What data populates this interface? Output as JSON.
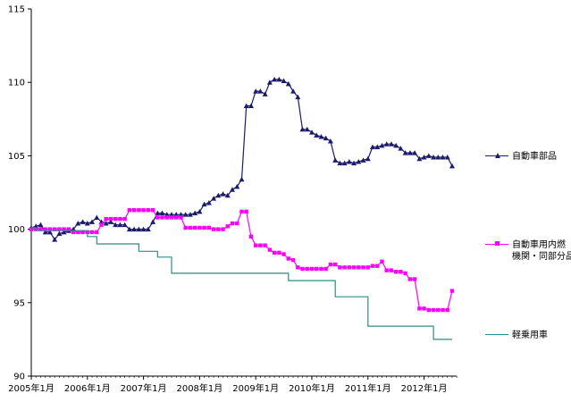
{
  "chart_data": {
    "type": "line",
    "title": "",
    "xlabel": "",
    "ylabel": "",
    "ylim": [
      90,
      115
    ],
    "yticks": [
      "90",
      "95",
      "100",
      "105",
      "110",
      "115"
    ],
    "xlim": [
      2005.0,
      2012.58
    ],
    "xticks": [
      {
        "label": "2005年1月",
        "value": 2005.0
      },
      {
        "label": "2006年1月",
        "value": 2006.0
      },
      {
        "label": "2007年1月",
        "value": 2007.0
      },
      {
        "label": "2008年1月",
        "value": 2008.0
      },
      {
        "label": "2009年1月",
        "value": 2009.0
      },
      {
        "label": "2010年1月",
        "value": 2010.0
      },
      {
        "label": "2011年1月",
        "value": 2011.0
      },
      {
        "label": "2012年1月",
        "value": 2012.0
      }
    ],
    "grid": false,
    "legend_position": "right",
    "series": [
      {
        "name": "自動車部品",
        "color": "#1a1a6e",
        "marker": "triangle",
        "x": [
          2005.0,
          2005.083,
          2005.167,
          2005.25,
          2005.333,
          2005.417,
          2005.5,
          2005.583,
          2005.667,
          2005.75,
          2005.833,
          2005.917,
          2006.0,
          2006.083,
          2006.167,
          2006.25,
          2006.333,
          2006.417,
          2006.5,
          2006.583,
          2006.667,
          2006.75,
          2006.833,
          2006.917,
          2007.0,
          2007.083,
          2007.167,
          2007.25,
          2007.333,
          2007.417,
          2007.5,
          2007.583,
          2007.667,
          2007.75,
          2007.833,
          2007.917,
          2008.0,
          2008.083,
          2008.167,
          2008.25,
          2008.333,
          2008.417,
          2008.5,
          2008.583,
          2008.667,
          2008.75,
          2008.833,
          2008.917,
          2009.0,
          2009.083,
          2009.167,
          2009.25,
          2009.333,
          2009.417,
          2009.5,
          2009.583,
          2009.667,
          2009.75,
          2009.833,
          2009.917,
          2010.0,
          2010.083,
          2010.167,
          2010.25,
          2010.333,
          2010.417,
          2010.5,
          2010.583,
          2010.667,
          2010.75,
          2010.833,
          2010.917,
          2011.0,
          2011.083,
          2011.167,
          2011.25,
          2011.333,
          2011.417,
          2011.5,
          2011.583,
          2011.667,
          2011.75,
          2011.833,
          2011.917,
          2012.0,
          2012.083,
          2012.167,
          2012.25,
          2012.333,
          2012.417,
          2012.5
        ],
        "y": [
          100.1,
          100.2,
          100.3,
          99.8,
          99.8,
          99.3,
          99.7,
          99.8,
          99.9,
          100.0,
          100.4,
          100.5,
          100.4,
          100.5,
          100.8,
          100.5,
          100.4,
          100.5,
          100.3,
          100.3,
          100.3,
          100.0,
          100.0,
          100.0,
          100.0,
          100.0,
          100.5,
          101.1,
          101.1,
          101.0,
          101.0,
          101.0,
          101.0,
          101.0,
          101.0,
          101.1,
          101.2,
          101.7,
          101.8,
          102.1,
          102.3,
          102.4,
          102.3,
          102.7,
          102.9,
          103.4,
          108.4,
          108.4,
          109.4,
          109.4,
          109.2,
          110.0,
          110.2,
          110.2,
          110.1,
          109.9,
          109.4,
          109.0,
          106.8,
          106.8,
          106.6,
          106.4,
          106.3,
          106.2,
          106.0,
          104.7,
          104.5,
          104.5,
          104.6,
          104.5,
          104.6,
          104.7,
          104.8,
          105.6,
          105.6,
          105.7,
          105.8,
          105.8,
          105.7,
          105.5,
          105.2,
          105.2,
          105.2,
          104.8,
          104.9,
          105.0,
          104.9,
          104.9,
          104.9,
          104.9,
          104.3
        ]
      },
      {
        "name": "自動車用内燃機関・同部分品",
        "name_lines": [
          "自動車用内燃",
          "機関・同部分品"
        ],
        "color": "#ff00ff",
        "marker": "square",
        "x": [
          2005.0,
          2005.083,
          2005.167,
          2005.25,
          2005.333,
          2005.417,
          2005.5,
          2005.583,
          2005.667,
          2005.75,
          2005.833,
          2005.917,
          2006.0,
          2006.083,
          2006.167,
          2006.25,
          2006.333,
          2006.417,
          2006.5,
          2006.583,
          2006.667,
          2006.75,
          2006.833,
          2006.917,
          2007.0,
          2007.083,
          2007.167,
          2007.25,
          2007.333,
          2007.417,
          2007.5,
          2007.583,
          2007.667,
          2007.75,
          2007.833,
          2007.917,
          2008.0,
          2008.083,
          2008.167,
          2008.25,
          2008.333,
          2008.417,
          2008.5,
          2008.583,
          2008.667,
          2008.75,
          2008.833,
          2008.917,
          2009.0,
          2009.083,
          2009.167,
          2009.25,
          2009.333,
          2009.417,
          2009.5,
          2009.583,
          2009.667,
          2009.75,
          2009.833,
          2009.917,
          2010.0,
          2010.083,
          2010.167,
          2010.25,
          2010.333,
          2010.417,
          2010.5,
          2010.583,
          2010.667,
          2010.75,
          2010.833,
          2010.917,
          2011.0,
          2011.083,
          2011.167,
          2011.25,
          2011.333,
          2011.417,
          2011.5,
          2011.583,
          2011.667,
          2011.75,
          2011.833,
          2011.917,
          2012.0,
          2012.083,
          2012.167,
          2012.25,
          2012.333,
          2012.417,
          2012.5
        ],
        "y": [
          100.0,
          100.0,
          100.0,
          100.0,
          100.0,
          100.0,
          100.0,
          100.0,
          100.0,
          99.8,
          99.8,
          99.8,
          99.8,
          99.8,
          99.8,
          100.3,
          100.7,
          100.7,
          100.7,
          100.7,
          100.7,
          101.3,
          101.3,
          101.3,
          101.3,
          101.3,
          101.3,
          100.8,
          100.8,
          100.8,
          100.8,
          100.8,
          100.8,
          100.1,
          100.1,
          100.1,
          100.1,
          100.1,
          100.1,
          100.0,
          100.0,
          100.0,
          100.2,
          100.4,
          100.4,
          101.2,
          101.2,
          99.5,
          98.9,
          98.9,
          98.9,
          98.6,
          98.4,
          98.4,
          98.3,
          98.0,
          97.9,
          97.4,
          97.3,
          97.3,
          97.3,
          97.3,
          97.3,
          97.3,
          97.6,
          97.6,
          97.4,
          97.4,
          97.4,
          97.4,
          97.4,
          97.4,
          97.4,
          97.5,
          97.5,
          97.8,
          97.2,
          97.2,
          97.1,
          97.1,
          97.0,
          96.6,
          96.6,
          94.6,
          94.6,
          94.5,
          94.5,
          94.5,
          94.5,
          94.5,
          95.8
        ]
      },
      {
        "name": "軽乗用車",
        "color": "#2e8b8b",
        "marker": "none",
        "step": true,
        "x": [
          2005.0,
          2005.083,
          2005.75,
          2006.0,
          2006.167,
          2006.75,
          2006.917,
          2007.25,
          2007.5,
          2008.0,
          2008.5,
          2008.75,
          2009.0,
          2009.5,
          2009.583,
          2010.0,
          2010.25,
          2010.417,
          2010.5,
          2010.917,
          2011.0,
          2011.5,
          2011.917,
          2012.0,
          2012.167,
          2012.5
        ],
        "y": [
          100.1,
          99.9,
          99.9,
          99.5,
          99.0,
          99.0,
          98.5,
          98.1,
          97.0,
          97.0,
          97.0,
          97.0,
          97.0,
          97.0,
          96.5,
          96.5,
          96.5,
          95.4,
          95.4,
          95.4,
          93.4,
          93.4,
          93.4,
          93.4,
          92.5,
          92.5
        ]
      }
    ]
  }
}
